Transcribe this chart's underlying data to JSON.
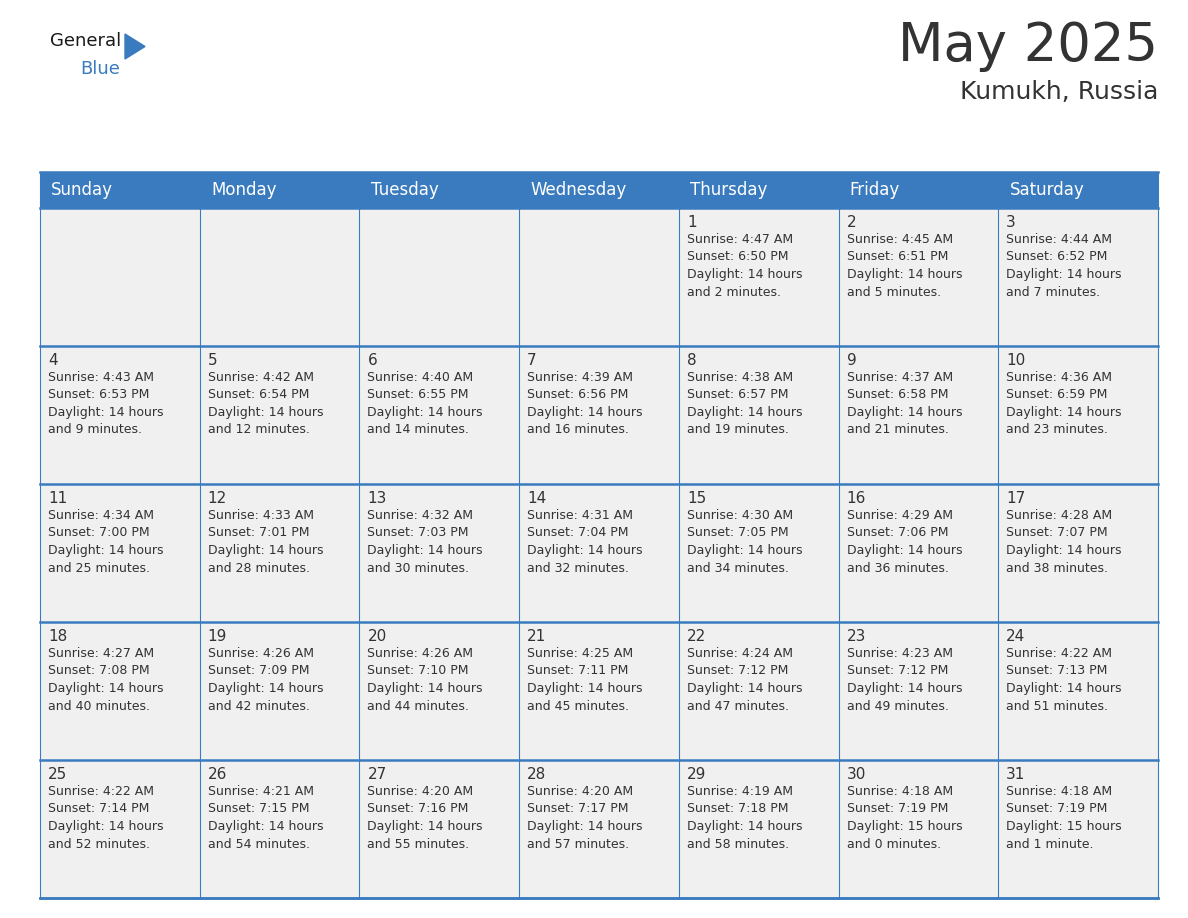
{
  "title": "May 2025",
  "subtitle": "Kumukh, Russia",
  "header_bg_color": "#3a7bbf",
  "header_text_color": "#ffffff",
  "cell_bg_color": "#f0f0f0",
  "border_color": "#3a7bbf",
  "text_color": "#333333",
  "days_of_week": [
    "Sunday",
    "Monday",
    "Tuesday",
    "Wednesday",
    "Thursday",
    "Friday",
    "Saturday"
  ],
  "num_cols": 7,
  "num_rows": 5,
  "calendar_data": [
    [
      "",
      "",
      "",
      "",
      "1\nSunrise: 4:47 AM\nSunset: 6:50 PM\nDaylight: 14 hours\nand 2 minutes.",
      "2\nSunrise: 4:45 AM\nSunset: 6:51 PM\nDaylight: 14 hours\nand 5 minutes.",
      "3\nSunrise: 4:44 AM\nSunset: 6:52 PM\nDaylight: 14 hours\nand 7 minutes."
    ],
    [
      "4\nSunrise: 4:43 AM\nSunset: 6:53 PM\nDaylight: 14 hours\nand 9 minutes.",
      "5\nSunrise: 4:42 AM\nSunset: 6:54 PM\nDaylight: 14 hours\nand 12 minutes.",
      "6\nSunrise: 4:40 AM\nSunset: 6:55 PM\nDaylight: 14 hours\nand 14 minutes.",
      "7\nSunrise: 4:39 AM\nSunset: 6:56 PM\nDaylight: 14 hours\nand 16 minutes.",
      "8\nSunrise: 4:38 AM\nSunset: 6:57 PM\nDaylight: 14 hours\nand 19 minutes.",
      "9\nSunrise: 4:37 AM\nSunset: 6:58 PM\nDaylight: 14 hours\nand 21 minutes.",
      "10\nSunrise: 4:36 AM\nSunset: 6:59 PM\nDaylight: 14 hours\nand 23 minutes."
    ],
    [
      "11\nSunrise: 4:34 AM\nSunset: 7:00 PM\nDaylight: 14 hours\nand 25 minutes.",
      "12\nSunrise: 4:33 AM\nSunset: 7:01 PM\nDaylight: 14 hours\nand 28 minutes.",
      "13\nSunrise: 4:32 AM\nSunset: 7:03 PM\nDaylight: 14 hours\nand 30 minutes.",
      "14\nSunrise: 4:31 AM\nSunset: 7:04 PM\nDaylight: 14 hours\nand 32 minutes.",
      "15\nSunrise: 4:30 AM\nSunset: 7:05 PM\nDaylight: 14 hours\nand 34 minutes.",
      "16\nSunrise: 4:29 AM\nSunset: 7:06 PM\nDaylight: 14 hours\nand 36 minutes.",
      "17\nSunrise: 4:28 AM\nSunset: 7:07 PM\nDaylight: 14 hours\nand 38 minutes."
    ],
    [
      "18\nSunrise: 4:27 AM\nSunset: 7:08 PM\nDaylight: 14 hours\nand 40 minutes.",
      "19\nSunrise: 4:26 AM\nSunset: 7:09 PM\nDaylight: 14 hours\nand 42 minutes.",
      "20\nSunrise: 4:26 AM\nSunset: 7:10 PM\nDaylight: 14 hours\nand 44 minutes.",
      "21\nSunrise: 4:25 AM\nSunset: 7:11 PM\nDaylight: 14 hours\nand 45 minutes.",
      "22\nSunrise: 4:24 AM\nSunset: 7:12 PM\nDaylight: 14 hours\nand 47 minutes.",
      "23\nSunrise: 4:23 AM\nSunset: 7:12 PM\nDaylight: 14 hours\nand 49 minutes.",
      "24\nSunrise: 4:22 AM\nSunset: 7:13 PM\nDaylight: 14 hours\nand 51 minutes."
    ],
    [
      "25\nSunrise: 4:22 AM\nSunset: 7:14 PM\nDaylight: 14 hours\nand 52 minutes.",
      "26\nSunrise: 4:21 AM\nSunset: 7:15 PM\nDaylight: 14 hours\nand 54 minutes.",
      "27\nSunrise: 4:20 AM\nSunset: 7:16 PM\nDaylight: 14 hours\nand 55 minutes.",
      "28\nSunrise: 4:20 AM\nSunset: 7:17 PM\nDaylight: 14 hours\nand 57 minutes.",
      "29\nSunrise: 4:19 AM\nSunset: 7:18 PM\nDaylight: 14 hours\nand 58 minutes.",
      "30\nSunrise: 4:18 AM\nSunset: 7:19 PM\nDaylight: 15 hours\nand 0 minutes.",
      "31\nSunrise: 4:18 AM\nSunset: 7:19 PM\nDaylight: 15 hours\nand 1 minute."
    ]
  ],
  "logo_color_general": "#1a1a1a",
  "logo_color_blue": "#3a7bbf",
  "logo_triangle_color": "#3a7bbf",
  "title_fontsize": 38,
  "subtitle_fontsize": 18,
  "header_fontsize": 12,
  "cell_day_fontsize": 11,
  "cell_info_fontsize": 9
}
